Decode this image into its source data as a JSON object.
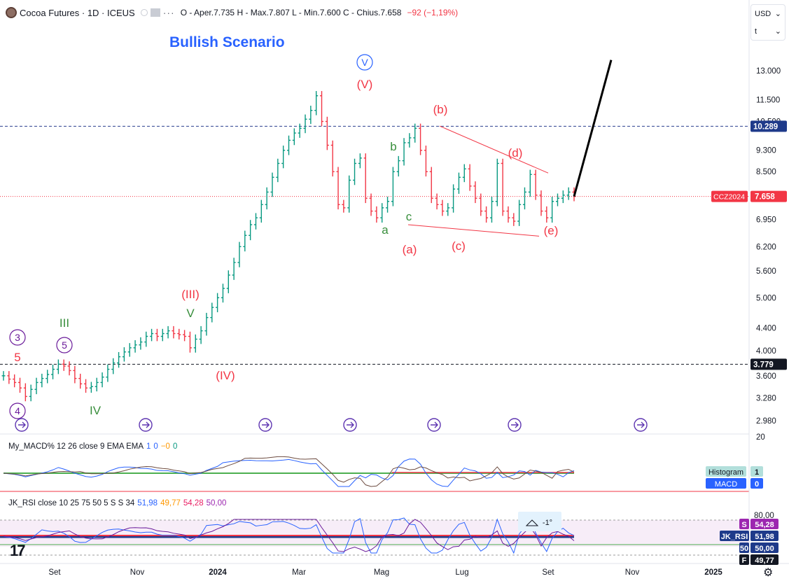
{
  "header": {
    "symbol": "Cocoa Futures · 1D · ICEUS",
    "ohlc": "O - Aper.7.735  H - Max.7.807  L - Min.7.600  C - Chius.7.658",
    "change": "−92 (−1,19%)",
    "currency": "USD",
    "unit": "t",
    "more": "···"
  },
  "chart_data": [
    {
      "type": "line",
      "title": "Bullish Scenario",
      "xlabel": "",
      "ylabel": "",
      "scale": "log",
      "ylim": [
        2800,
        15000
      ],
      "y_ticks": [
        "13.000",
        "11.500",
        "10.500",
        "9.300",
        "8.500",
        "6.950",
        "6.200",
        "5.600",
        "5.000",
        "4.400",
        "4.000",
        "3.600",
        "3.280",
        "2.980"
      ],
      "x_ticks": [
        "Set",
        "Nov",
        "2024",
        "Mar",
        "Mag",
        "Lug",
        "Set",
        "Nov",
        "2025"
      ],
      "last_price": {
        "symbol": "CCZ2024",
        "value": "7.658"
      },
      "levels": [
        {
          "label": "10.289",
          "value": 10289,
          "style": "dashed-blue"
        },
        {
          "label": "3.779",
          "value": 3779,
          "style": "dashed-black"
        }
      ],
      "wave_labels": [
        {
          "text": "3",
          "circle": true,
          "color": "#6a1b9a"
        },
        {
          "text": "5",
          "circle": false,
          "color": "#f23645"
        },
        {
          "text": "4",
          "circle": true,
          "color": "#6a1b9a"
        },
        {
          "text": "III",
          "circle": false,
          "color": "#388e3c"
        },
        {
          "text": "5",
          "circle": true,
          "color": "#6a1b9a"
        },
        {
          "text": "IV",
          "circle": false,
          "color": "#388e3c"
        },
        {
          "text": "(III)",
          "circle": false,
          "color": "#f23645"
        },
        {
          "text": "V",
          "circle": false,
          "color": "#388e3c"
        },
        {
          "text": "(IV)",
          "circle": false,
          "color": "#f23645"
        },
        {
          "text": "V",
          "circle": true,
          "color": "#2962ff"
        },
        {
          "text": "(V)",
          "circle": false,
          "color": "#f23645"
        },
        {
          "text": "a",
          "circle": false,
          "color": "#388e3c"
        },
        {
          "text": "b",
          "circle": false,
          "color": "#388e3c"
        },
        {
          "text": "c",
          "circle": false,
          "color": "#388e3c"
        },
        {
          "text": "(a)",
          "circle": false,
          "color": "#f23645"
        },
        {
          "text": "(b)",
          "circle": false,
          "color": "#f23645"
        },
        {
          "text": "(c)",
          "circle": false,
          "color": "#f23645"
        },
        {
          "text": "(d)",
          "circle": false,
          "color": "#f23645"
        },
        {
          "text": "(e)",
          "circle": false,
          "color": "#f23645"
        }
      ],
      "series": [
        {
          "values": [
            3600,
            3550,
            3500,
            3420,
            3300,
            3400,
            3500,
            3560,
            3620,
            3700,
            3780,
            3750,
            3680,
            3560,
            3480,
            3420,
            3440,
            3500,
            3580,
            3700,
            3800,
            3900,
            3980,
            4050,
            4100,
            4150,
            4250,
            4300,
            4250,
            4300,
            4350,
            4300,
            4280,
            4250,
            4050,
            4200,
            4350,
            4600,
            4800,
            5000,
            5200,
            5500,
            5800,
            6200,
            6500,
            6800,
            7000,
            7400,
            7800,
            8300,
            8800,
            9300,
            9700,
            10000,
            10200,
            10600,
            11000,
            11700,
            10500,
            9500,
            8500,
            7400,
            7300,
            8200,
            8800,
            9000,
            7600,
            7200,
            7000,
            7300,
            7500,
            8500,
            8900,
            9600,
            9800,
            10200,
            9300,
            8500,
            7600,
            7400,
            7200,
            7300,
            7900,
            8300,
            8600,
            8000,
            7600,
            7200,
            7000,
            7500,
            8800,
            7200,
            7000,
            6900,
            7400,
            7800,
            8400,
            7700,
            7200,
            7000,
            7500,
            7600,
            7700,
            7800,
            7658
          ]
        },
        {
          "name": "projection",
          "values": [
            7658,
            13600
          ]
        }
      ]
    },
    {
      "type": "line",
      "title": "My_MACD% 12 26 close 9 EMA EMA",
      "params": [
        "1",
        "0",
        "−0",
        "0"
      ],
      "ylabel": "20",
      "tags": [
        {
          "label": "Histogram",
          "value": "1"
        },
        {
          "label": "MACD",
          "value": "0"
        }
      ]
    },
    {
      "type": "line",
      "title": "JK_RSI close 10 25 75 50 5 S S 34",
      "params": [
        "51,98",
        "49,77",
        "54,28",
        "50,00"
      ],
      "y_ticks": [
        "80,00"
      ],
      "tags": [
        {
          "key": "S",
          "value": "54,28"
        },
        {
          "key": "JK_RSI",
          "value": "51,98"
        },
        {
          "key": "50",
          "value": "50,00"
        },
        {
          "key": "F",
          "value": "49,77"
        }
      ],
      "note": "-1°"
    }
  ]
}
